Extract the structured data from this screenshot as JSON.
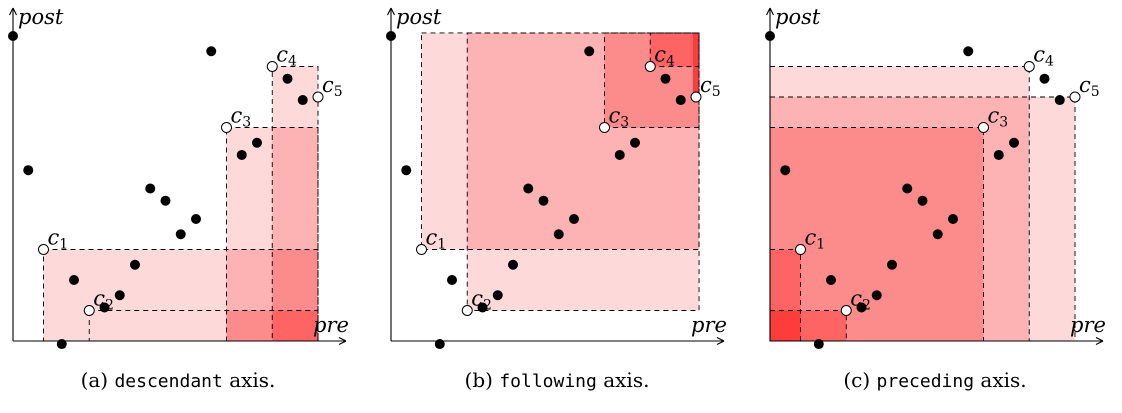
{
  "axes": {
    "x_label": "pre",
    "y_label": "post"
  },
  "colors": {
    "light": "#fdd9d9",
    "mid": "#fdb3b3",
    "mid2": "#fc8b8b",
    "strong": "#ff6464",
    "dark": "#ff3c3c"
  },
  "points": [
    [
      0,
      100
    ],
    [
      5,
      56
    ],
    [
      16,
      -1
    ],
    [
      20,
      20
    ],
    [
      30,
      11
    ],
    [
      35,
      15
    ],
    [
      40,
      25
    ],
    [
      45,
      50
    ],
    [
      50,
      46
    ],
    [
      55,
      35
    ],
    [
      60,
      40
    ],
    [
      65,
      95
    ],
    [
      75,
      61
    ],
    [
      80,
      65
    ],
    [
      90,
      86
    ],
    [
      95,
      79
    ]
  ],
  "context_nodes": [
    {
      "label": "c",
      "sub": "1",
      "x": 10,
      "y": 30
    },
    {
      "label": "c",
      "sub": "2",
      "x": 25,
      "y": 10
    },
    {
      "label": "c",
      "sub": "3",
      "x": 70,
      "y": 70
    },
    {
      "label": "c",
      "sub": "4",
      "x": 85,
      "y": 90
    },
    {
      "label": "c",
      "sub": "5",
      "x": 100,
      "y": 80
    }
  ],
  "panels": [
    {
      "caption_prefix": "(a)",
      "axis_name": "descendant",
      "caption_suffix": "axis.",
      "region": "descendant"
    },
    {
      "caption_prefix": "(b)",
      "axis_name": "following",
      "caption_suffix": "axis.",
      "region": "following"
    },
    {
      "caption_prefix": "(c)",
      "axis_name": "preceding",
      "caption_suffix": "axis.",
      "region": "preceding"
    }
  ]
}
